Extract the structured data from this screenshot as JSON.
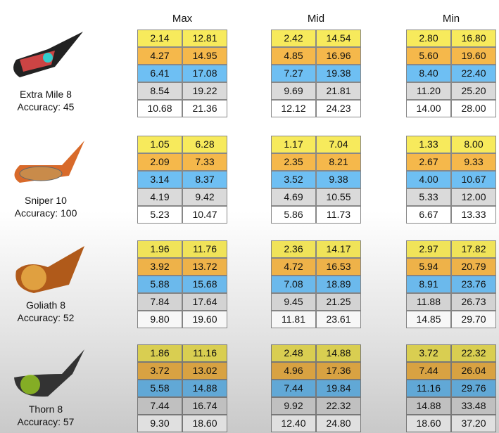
{
  "columns": [
    "Max",
    "Mid",
    "Min"
  ],
  "clubs": [
    {
      "name": "Extra Mile 8",
      "accuracy": "Accuracy: 45",
      "tables": [
        [
          [
            "2.14",
            "12.81"
          ],
          [
            "4.27",
            "14.95"
          ],
          [
            "6.41",
            "17.08"
          ],
          [
            "8.54",
            "19.22"
          ],
          [
            "10.68",
            "21.36"
          ]
        ],
        [
          [
            "2.42",
            "14.54"
          ],
          [
            "4.85",
            "16.96"
          ],
          [
            "7.27",
            "19.38"
          ],
          [
            "9.69",
            "21.81"
          ],
          [
            "12.12",
            "24.23"
          ]
        ],
        [
          [
            "2.80",
            "16.80"
          ],
          [
            "5.60",
            "19.60"
          ],
          [
            "8.40",
            "22.40"
          ],
          [
            "11.20",
            "25.20"
          ],
          [
            "14.00",
            "28.00"
          ]
        ]
      ]
    },
    {
      "name": "Sniper 10",
      "accuracy": "Accuracy: 100",
      "tables": [
        [
          [
            "1.05",
            "6.28"
          ],
          [
            "2.09",
            "7.33"
          ],
          [
            "3.14",
            "8.37"
          ],
          [
            "4.19",
            "9.42"
          ],
          [
            "5.23",
            "10.47"
          ]
        ],
        [
          [
            "1.17",
            "7.04"
          ],
          [
            "2.35",
            "8.21"
          ],
          [
            "3.52",
            "9.38"
          ],
          [
            "4.69",
            "10.55"
          ],
          [
            "5.86",
            "11.73"
          ]
        ],
        [
          [
            "1.33",
            "8.00"
          ],
          [
            "2.67",
            "9.33"
          ],
          [
            "4.00",
            "10.67"
          ],
          [
            "5.33",
            "12.00"
          ],
          [
            "6.67",
            "13.33"
          ]
        ]
      ]
    },
    {
      "name": "Goliath 8",
      "accuracy": "Accuracy: 52",
      "tables": [
        [
          [
            "1.96",
            "11.76"
          ],
          [
            "3.92",
            "13.72"
          ],
          [
            "5.88",
            "15.68"
          ],
          [
            "7.84",
            "17.64"
          ],
          [
            "9.80",
            "19.60"
          ]
        ],
        [
          [
            "2.36",
            "14.17"
          ],
          [
            "4.72",
            "16.53"
          ],
          [
            "7.08",
            "18.89"
          ],
          [
            "9.45",
            "21.25"
          ],
          [
            "11.81",
            "23.61"
          ]
        ],
        [
          [
            "2.97",
            "17.82"
          ],
          [
            "5.94",
            "20.79"
          ],
          [
            "8.91",
            "23.76"
          ],
          [
            "11.88",
            "26.73"
          ],
          [
            "14.85",
            "29.70"
          ]
        ]
      ]
    },
    {
      "name": "Thorn 8",
      "accuracy": "Accuracy: 57",
      "tables": [
        [
          [
            "1.86",
            "11.16"
          ],
          [
            "3.72",
            "13.02"
          ],
          [
            "5.58",
            "14.88"
          ],
          [
            "7.44",
            "16.74"
          ],
          [
            "9.30",
            "18.60"
          ]
        ],
        [
          [
            "2.48",
            "14.88"
          ],
          [
            "4.96",
            "17.36"
          ],
          [
            "7.44",
            "19.84"
          ],
          [
            "9.92",
            "22.32"
          ],
          [
            "12.40",
            "24.80"
          ]
        ],
        [
          [
            "3.72",
            "22.32"
          ],
          [
            "7.44",
            "26.04"
          ],
          [
            "11.16",
            "29.76"
          ],
          [
            "14.88",
            "33.48"
          ],
          [
            "18.60",
            "37.20"
          ]
        ]
      ]
    }
  ]
}
